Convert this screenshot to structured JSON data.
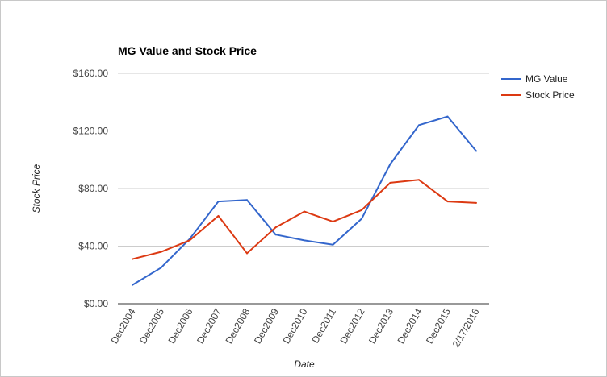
{
  "chart_data": {
    "type": "line",
    "title": "MG Value and Stock Price",
    "xlabel": "Date",
    "ylabel": "Stock Price",
    "categories": [
      "Dec2004",
      "Dec2005",
      "Dec2006",
      "Dec2007",
      "Dec2008",
      "Dec2009",
      "Dec2010",
      "Dec2011",
      "Dec2012",
      "Dec2013",
      "Dec2014",
      "Dec2015",
      "2/17/2016"
    ],
    "ylim": [
      0,
      160
    ],
    "yticks": [
      0,
      40,
      80,
      120,
      160
    ],
    "ytick_labels": [
      "$0.00",
      "$40.00",
      "$80.00",
      "$120.00",
      "$160.00"
    ],
    "grid": true,
    "legend_position": "right",
    "series": [
      {
        "name": "MG Value",
        "color": "#3366cc",
        "values": [
          13,
          25,
          45,
          71,
          72,
          48,
          44,
          41,
          59,
          97,
          124,
          130,
          106
        ]
      },
      {
        "name": "Stock Price",
        "color": "#dc3912",
        "values": [
          31,
          36,
          44,
          61,
          35,
          53,
          64,
          57,
          65,
          84,
          86,
          71,
          70
        ]
      }
    ]
  }
}
